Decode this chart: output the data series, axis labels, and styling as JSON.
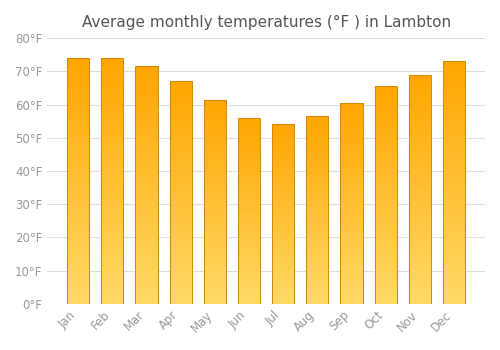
{
  "title": "Average monthly temperatures (°F ) in Lambton",
  "months": [
    "Jan",
    "Feb",
    "Mar",
    "Apr",
    "May",
    "Jun",
    "Jul",
    "Aug",
    "Sep",
    "Oct",
    "Nov",
    "Dec"
  ],
  "values": [
    74.0,
    74.0,
    71.5,
    67.0,
    61.5,
    56.0,
    54.0,
    56.5,
    60.5,
    65.5,
    69.0,
    73.0
  ],
  "bar_color_top": "#FFA500",
  "bar_color_bottom": "#FFD966",
  "bar_edge_color": "#D4870A",
  "ylim": [
    0,
    80
  ],
  "yticks": [
    0,
    10,
    20,
    30,
    40,
    50,
    60,
    70,
    80
  ],
  "ytick_labels": [
    "0°F",
    "10°F",
    "20°F",
    "30°F",
    "40°F",
    "50°F",
    "60°F",
    "70°F",
    "80°F"
  ],
  "background_color": "#FFFFFF",
  "grid_color": "#DDDDDD",
  "title_fontsize": 11,
  "tick_fontsize": 8.5,
  "tick_color": "#999999",
  "title_color": "#555555"
}
